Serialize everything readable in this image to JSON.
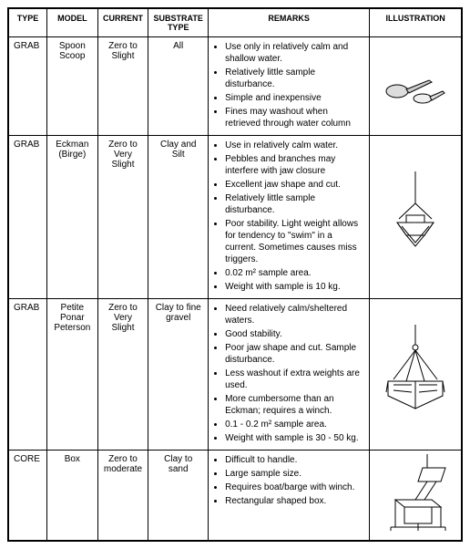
{
  "headers": [
    "TYPE",
    "MODEL",
    "CURRENT",
    "SUBSTRATE TYPE",
    "REMARKS",
    "ILLUSTRATION"
  ],
  "rows": [
    {
      "type": "GRAB",
      "model": "Spoon Scoop",
      "current": "Zero  to Slight",
      "substrate": "All",
      "remarks": [
        "Use only in relatively calm and shallow water.",
        "Relatively little sample disturbance.",
        "Simple and inexpensive",
        "Fines may washout when retrieved through water column"
      ]
    },
    {
      "type": "GRAB",
      "model": "Eckman (Birge)",
      "current": "Zero  to Very Slight",
      "substrate": "Clay and Silt",
      "remarks": [
        "Use in relatively calm water.",
        "Pebbles and branches may interfere with jaw closure",
        "Excellent jaw shape and cut.",
        "Relatively little sample disturbance.",
        "Poor stability. Light weight allows for tendency to \"swim\" in a current. Sometimes causes miss triggers.",
        "0.02 m² sample area.",
        "Weight with sample is 10 kg."
      ]
    },
    {
      "type": "GRAB",
      "model": "Petite Ponar Peterson",
      "current": "Zero  to Very Slight",
      "substrate": "Clay to fine gravel",
      "remarks": [
        "Need relatively calm/sheltered waters.",
        "Good stability.",
        "Poor jaw shape and cut. Sample disturbance.",
        "Less washout if extra weights are used.",
        "More cumbersome than an Eckman; requires a winch.",
        "0.1 - 0.2 m² sample area.",
        "Weight with sample is 30 - 50 kg."
      ]
    },
    {
      "type": "CORE",
      "model": "Box",
      "current": "Zero  to moderate",
      "substrate": "Clay to sand",
      "remarks": [
        "Difficult to handle.",
        "Large sample size.",
        "Requires boat/barge with winch.",
        "Rectangular shaped box."
      ]
    }
  ],
  "style": {
    "font_family": "Arial, sans-serif",
    "font_size_body": 10,
    "font_size_header": 9,
    "border_color": "#000000",
    "outer_border_width": 2,
    "inner_border_width": 1,
    "background_color": "#ffffff"
  }
}
